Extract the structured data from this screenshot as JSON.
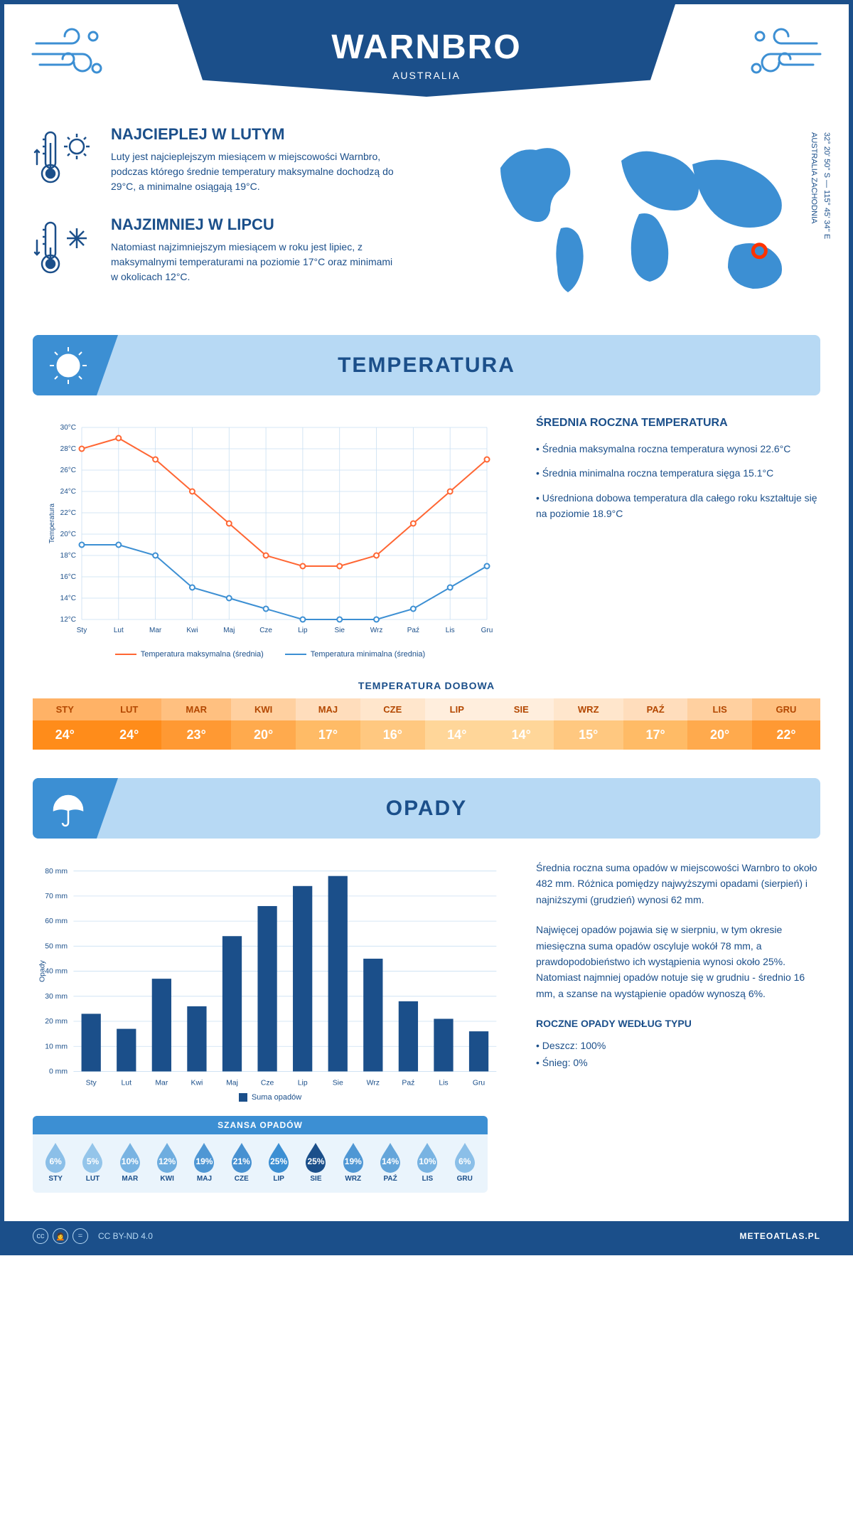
{
  "header": {
    "title": "WARNBRO",
    "subtitle": "AUSTRALIA"
  },
  "coords": {
    "line1": "32° 20' 50'' S — 115° 45' 34'' E",
    "line2": "AUSTRALIA ZACHODNIA"
  },
  "marker": {
    "lon": 115.76,
    "lat": -32.35
  },
  "facts": {
    "warm": {
      "title": "NAJCIEPLEJ W LUTYM",
      "body": "Luty jest najcieplejszym miesiącem w miejscowości Warnbro, podczas którego średnie temperatury maksymalne dochodzą do 29°C, a minimalne osiągają 19°C."
    },
    "cold": {
      "title": "NAJZIMNIEJ W LIPCU",
      "body": "Natomiast najzimniejszym miesiącem w roku jest lipiec, z maksymalnymi temperaturami na poziomie 17°C oraz minimami w okolicach 12°C."
    }
  },
  "sections": {
    "temperature": "TEMPERATURA",
    "precip": "OPADY"
  },
  "temp_chart": {
    "months": [
      "Sty",
      "Lut",
      "Mar",
      "Kwi",
      "Maj",
      "Cze",
      "Lip",
      "Sie",
      "Wrz",
      "Paź",
      "Lis",
      "Gru"
    ],
    "max_values": [
      28,
      29,
      27,
      24,
      21,
      18,
      17,
      17,
      18,
      21,
      24,
      27
    ],
    "min_values": [
      19,
      19,
      18,
      15,
      14,
      13,
      12,
      12,
      12,
      13,
      15,
      17
    ],
    "y_min": 12,
    "y_max": 30,
    "y_step": 2,
    "max_color": "#ff6633",
    "min_color": "#3c8fd3",
    "grid_color": "#c9dff2",
    "y_label": "Temperatura",
    "legend_max": "Temperatura maksymalna (średnia)",
    "legend_min": "Temperatura minimalna (średnia)"
  },
  "temp_info": {
    "title": "ŚREDNIA ROCZNA TEMPERATURA",
    "lines": [
      "• Średnia maksymalna roczna temperatura wynosi 22.6°C",
      "• Średnia minimalna roczna temperatura sięga 15.1°C",
      "• Uśredniona dobowa temperatura dla całego roku kształtuje się na poziomie 18.9°C"
    ]
  },
  "daily": {
    "title": "TEMPERATURA DOBOWA",
    "months": [
      "STY",
      "LUT",
      "MAR",
      "KWI",
      "MAJ",
      "CZE",
      "LIP",
      "SIE",
      "WRZ",
      "PAŹ",
      "LIS",
      "GRU"
    ],
    "values": [
      "24°",
      "24°",
      "23°",
      "20°",
      "17°",
      "16°",
      "14°",
      "14°",
      "15°",
      "17°",
      "20°",
      "22°"
    ],
    "header_colors": [
      "#ffb266",
      "#ffb266",
      "#ffc080",
      "#ffd0a0",
      "#ffddbc",
      "#ffe6cc",
      "#ffeedd",
      "#ffeedd",
      "#ffe6cc",
      "#ffddbc",
      "#ffd0a0",
      "#ffc080"
    ],
    "value_colors": [
      "#ff8c1a",
      "#ff8c1a",
      "#ff9933",
      "#ffaa4d",
      "#ffbb66",
      "#ffc880",
      "#ffd699",
      "#ffd699",
      "#ffc880",
      "#ffbb66",
      "#ffaa4d",
      "#ff9933"
    ],
    "header_text_color": "#b34700"
  },
  "precip_chart": {
    "months": [
      "Sty",
      "Lut",
      "Mar",
      "Kwi",
      "Maj",
      "Cze",
      "Lip",
      "Sie",
      "Wrz",
      "Paź",
      "Lis",
      "Gru"
    ],
    "values": [
      23,
      17,
      37,
      26,
      54,
      66,
      74,
      78,
      45,
      28,
      21,
      16
    ],
    "y_max": 80,
    "y_step": 10,
    "bar_color": "#1b4f8a",
    "grid_color": "#c9dff2",
    "y_label": "Opady",
    "legend": "Suma opadów"
  },
  "precip_info": {
    "p1": "Średnia roczna suma opadów w miejscowości Warnbro to około 482 mm. Różnica pomiędzy najwyższymi opadami (sierpień) i najniższymi (grudzień) wynosi 62 mm.",
    "p2": "Najwięcej opadów pojawia się w sierpniu, w tym okresie miesięczna suma opadów oscyluje wokół 78 mm, a prawdopodobieństwo ich wystąpienia wynosi około 25%. Natomiast najmniej opadów notuje się w grudniu - średnio 16 mm, a szanse na wystąpienie opadów wynoszą 6%.",
    "type_title": "ROCZNE OPADY WEDŁUG TYPU",
    "type_lines": [
      "• Deszcz: 100%",
      "• Śnieg: 0%"
    ]
  },
  "chance": {
    "title": "SZANSA OPADÓW",
    "months": [
      "STY",
      "LUT",
      "MAR",
      "KWI",
      "MAJ",
      "CZE",
      "LIP",
      "SIE",
      "WRZ",
      "PAŹ",
      "LIS",
      "GRU"
    ],
    "values": [
      "6%",
      "5%",
      "10%",
      "12%",
      "19%",
      "21%",
      "25%",
      "25%",
      "19%",
      "14%",
      "10%",
      "6%"
    ],
    "colors": [
      "#8bbfe8",
      "#94c5ea",
      "#78b3e2",
      "#6eaddf",
      "#4f97d4",
      "#4791d1",
      "#3c8fd3",
      "#1b4f8a",
      "#4f97d4",
      "#64a5da",
      "#78b3e2",
      "#8bbfe8"
    ]
  },
  "footer": {
    "license": "CC BY-ND 4.0",
    "site": "METEOATLAS.PL"
  }
}
